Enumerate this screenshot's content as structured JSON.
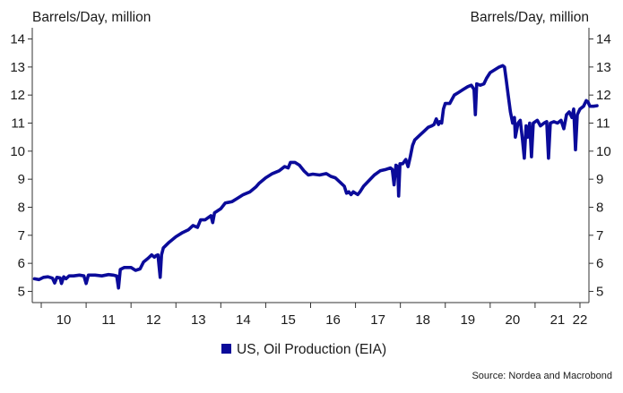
{
  "chart_data": {
    "type": "line",
    "ylabel_left": "Barrels/Day, million",
    "ylabel_right": "Barrels/Day, million",
    "ylim": [
      4.6,
      14.4
    ],
    "yticks": [
      5,
      6,
      7,
      8,
      9,
      10,
      11,
      12,
      13,
      14
    ],
    "xlim": [
      2009.8,
      2022.2
    ],
    "xticks": [
      {
        "label": "10",
        "x": 2010.5
      },
      {
        "label": "11",
        "x": 2011.5
      },
      {
        "label": "12",
        "x": 2012.5
      },
      {
        "label": "13",
        "x": 2013.5
      },
      {
        "label": "14",
        "x": 2014.5
      },
      {
        "label": "15",
        "x": 2015.5
      },
      {
        "label": "16",
        "x": 2016.5
      },
      {
        "label": "17",
        "x": 2017.5
      },
      {
        "label": "18",
        "x": 2018.5
      },
      {
        "label": "19",
        "x": 2019.5
      },
      {
        "label": "20",
        "x": 2020.5
      },
      {
        "label": "21",
        "x": 2021.5
      },
      {
        "label": "22",
        "x": 2022.0
      }
    ],
    "grid": false,
    "legend_position": "bottom-center",
    "series": [
      {
        "name": "US, Oil Production (EIA)",
        "color": "#0b0b9a",
        "points": [
          [
            2009.85,
            5.45
          ],
          [
            2009.95,
            5.42
          ],
          [
            2010.05,
            5.5
          ],
          [
            2010.15,
            5.52
          ],
          [
            2010.25,
            5.47
          ],
          [
            2010.3,
            5.3
          ],
          [
            2010.35,
            5.5
          ],
          [
            2010.42,
            5.48
          ],
          [
            2010.45,
            5.28
          ],
          [
            2010.5,
            5.52
          ],
          [
            2010.55,
            5.45
          ],
          [
            2010.62,
            5.55
          ],
          [
            2010.72,
            5.55
          ],
          [
            2010.85,
            5.58
          ],
          [
            2010.95,
            5.55
          ],
          [
            2011.0,
            5.28
          ],
          [
            2011.05,
            5.58
          ],
          [
            2011.2,
            5.58
          ],
          [
            2011.35,
            5.55
          ],
          [
            2011.5,
            5.6
          ],
          [
            2011.6,
            5.58
          ],
          [
            2011.68,
            5.55
          ],
          [
            2011.72,
            5.12
          ],
          [
            2011.76,
            5.78
          ],
          [
            2011.85,
            5.85
          ],
          [
            2012.0,
            5.85
          ],
          [
            2012.1,
            5.75
          ],
          [
            2012.2,
            5.8
          ],
          [
            2012.28,
            6.05
          ],
          [
            2012.38,
            6.18
          ],
          [
            2012.46,
            6.3
          ],
          [
            2012.52,
            6.22
          ],
          [
            2012.56,
            6.28
          ],
          [
            2012.6,
            6.3
          ],
          [
            2012.65,
            5.5
          ],
          [
            2012.68,
            6.3
          ],
          [
            2012.72,
            6.55
          ],
          [
            2012.85,
            6.75
          ],
          [
            2013.0,
            6.95
          ],
          [
            2013.15,
            7.1
          ],
          [
            2013.28,
            7.2
          ],
          [
            2013.38,
            7.35
          ],
          [
            2013.48,
            7.28
          ],
          [
            2013.55,
            7.55
          ],
          [
            2013.65,
            7.55
          ],
          [
            2013.78,
            7.7
          ],
          [
            2013.82,
            7.45
          ],
          [
            2013.86,
            7.8
          ],
          [
            2014.0,
            7.95
          ],
          [
            2014.1,
            8.15
          ],
          [
            2014.25,
            8.2
          ],
          [
            2014.35,
            8.3
          ],
          [
            2014.5,
            8.45
          ],
          [
            2014.65,
            8.55
          ],
          [
            2014.78,
            8.72
          ],
          [
            2014.85,
            8.85
          ],
          [
            2015.0,
            9.05
          ],
          [
            2015.15,
            9.2
          ],
          [
            2015.3,
            9.3
          ],
          [
            2015.42,
            9.45
          ],
          [
            2015.5,
            9.4
          ],
          [
            2015.55,
            9.6
          ],
          [
            2015.65,
            9.6
          ],
          [
            2015.75,
            9.5
          ],
          [
            2015.85,
            9.3
          ],
          [
            2015.95,
            9.15
          ],
          [
            2016.05,
            9.18
          ],
          [
            2016.2,
            9.15
          ],
          [
            2016.35,
            9.2
          ],
          [
            2016.45,
            9.1
          ],
          [
            2016.55,
            9.05
          ],
          [
            2016.65,
            8.9
          ],
          [
            2016.75,
            8.75
          ],
          [
            2016.8,
            8.5
          ],
          [
            2016.85,
            8.55
          ],
          [
            2016.9,
            8.45
          ],
          [
            2016.95,
            8.55
          ],
          [
            2017.05,
            8.45
          ],
          [
            2017.1,
            8.55
          ],
          [
            2017.18,
            8.75
          ],
          [
            2017.3,
            8.95
          ],
          [
            2017.42,
            9.15
          ],
          [
            2017.55,
            9.3
          ],
          [
            2017.68,
            9.35
          ],
          [
            2017.78,
            9.4
          ],
          [
            2017.82,
            9.35
          ],
          [
            2017.86,
            8.8
          ],
          [
            2017.9,
            9.5
          ],
          [
            2017.94,
            9.45
          ],
          [
            2017.96,
            8.4
          ],
          [
            2017.99,
            9.55
          ],
          [
            2018.05,
            9.55
          ],
          [
            2018.12,
            9.7
          ],
          [
            2018.17,
            9.45
          ],
          [
            2018.22,
            9.8
          ],
          [
            2018.27,
            10.2
          ],
          [
            2018.32,
            10.4
          ],
          [
            2018.42,
            10.55
          ],
          [
            2018.52,
            10.7
          ],
          [
            2018.62,
            10.85
          ],
          [
            2018.7,
            10.9
          ],
          [
            2018.75,
            10.95
          ],
          [
            2018.8,
            11.15
          ],
          [
            2018.85,
            10.95
          ],
          [
            2018.88,
            11.05
          ],
          [
            2018.92,
            11.0
          ],
          [
            2018.96,
            11.5
          ],
          [
            2019.0,
            11.7
          ],
          [
            2019.1,
            11.7
          ],
          [
            2019.2,
            12.0
          ],
          [
            2019.3,
            12.1
          ],
          [
            2019.4,
            12.2
          ],
          [
            2019.5,
            12.3
          ],
          [
            2019.58,
            12.35
          ],
          [
            2019.64,
            12.2
          ],
          [
            2019.67,
            11.3
          ],
          [
            2019.7,
            12.4
          ],
          [
            2019.78,
            12.35
          ],
          [
            2019.86,
            12.4
          ],
          [
            2019.92,
            12.6
          ],
          [
            2020.0,
            12.8
          ],
          [
            2020.1,
            12.9
          ],
          [
            2020.2,
            13.0
          ],
          [
            2020.28,
            13.05
          ],
          [
            2020.32,
            13.0
          ],
          [
            2020.36,
            12.5
          ],
          [
            2020.4,
            12.0
          ],
          [
            2020.45,
            11.4
          ],
          [
            2020.5,
            11.0
          ],
          [
            2020.54,
            11.2
          ],
          [
            2020.56,
            10.5
          ],
          [
            2020.62,
            11.0
          ],
          [
            2020.67,
            11.1
          ],
          [
            2020.72,
            10.4
          ],
          [
            2020.76,
            9.75
          ],
          [
            2020.8,
            10.9
          ],
          [
            2020.84,
            10.5
          ],
          [
            2020.88,
            11.0
          ],
          [
            2020.92,
            9.8
          ],
          [
            2020.96,
            11.0
          ],
          [
            2021.05,
            11.1
          ],
          [
            2021.12,
            10.9
          ],
          [
            2021.2,
            11.0
          ],
          [
            2021.26,
            11.05
          ],
          [
            2021.3,
            9.75
          ],
          [
            2021.34,
            11.0
          ],
          [
            2021.42,
            11.05
          ],
          [
            2021.5,
            11.0
          ],
          [
            2021.58,
            11.1
          ],
          [
            2021.64,
            10.8
          ],
          [
            2021.7,
            11.3
          ],
          [
            2021.76,
            11.4
          ],
          [
            2021.82,
            11.2
          ],
          [
            2021.86,
            11.5
          ],
          [
            2021.9,
            10.05
          ],
          [
            2021.94,
            11.3
          ],
          [
            2022.0,
            11.5
          ],
          [
            2022.08,
            11.6
          ],
          [
            2022.14,
            11.8
          ],
          [
            2022.18,
            11.75
          ],
          [
            2022.22,
            11.6
          ],
          [
            2022.3,
            11.6
          ],
          [
            2022.38,
            11.62
          ]
        ]
      }
    ]
  },
  "legend": {
    "label": "US, Oil Production (EIA)"
  },
  "source": "Source: Nordea and Macrobond"
}
